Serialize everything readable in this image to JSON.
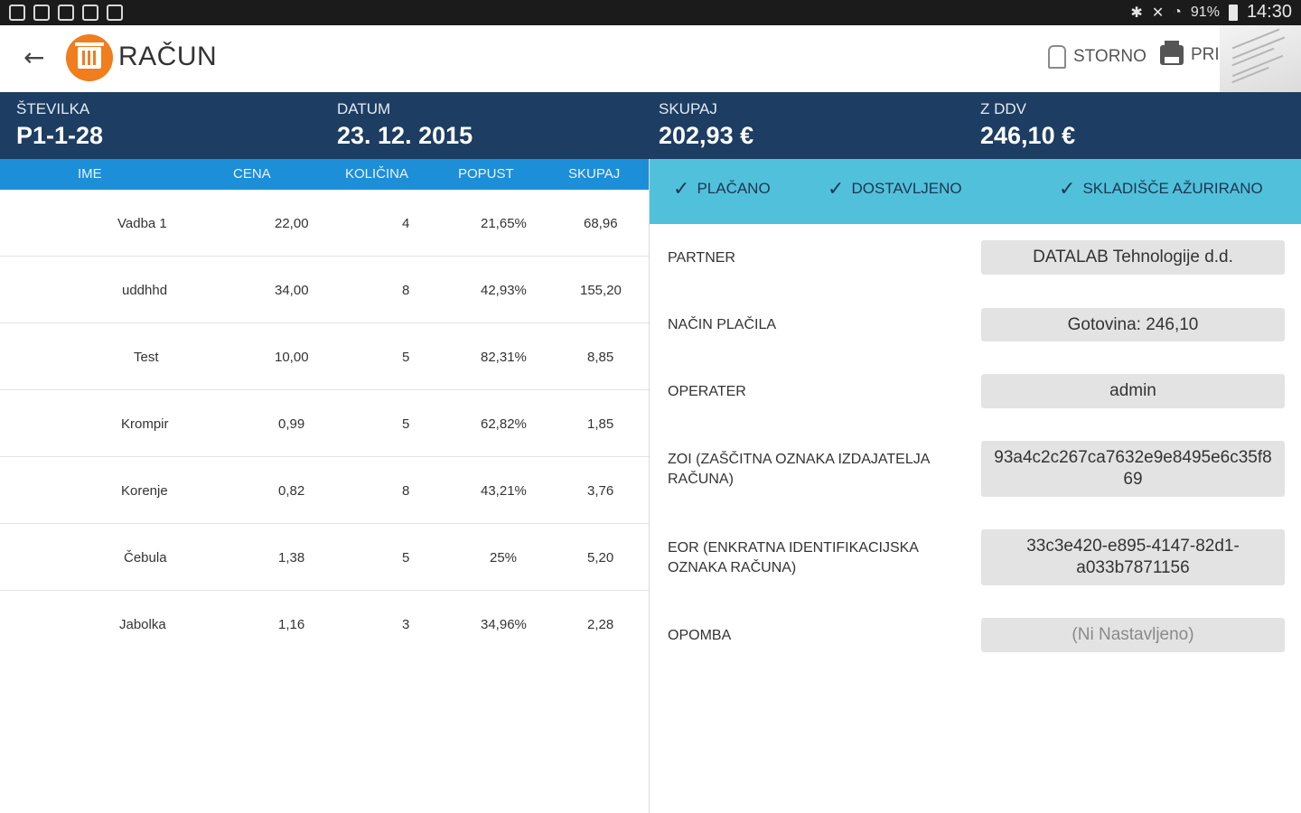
{
  "statusbar": {
    "battery": "91%",
    "time": "14:30"
  },
  "appbar": {
    "title": "RAČUN",
    "storno": "STORNO",
    "print": "PRINT"
  },
  "summary": [
    {
      "label": "ŠTEVILKA",
      "value": "P1-1-28"
    },
    {
      "label": "DATUM",
      "value": "23. 12. 2015"
    },
    {
      "label": "SKUPAJ",
      "value": "202,93 €"
    },
    {
      "label": "Z DDV",
      "value": "246,10 €"
    }
  ],
  "table": {
    "headers": [
      "IME",
      "CENA",
      "KOLIČINA",
      "POPUST",
      "SKUPAJ"
    ],
    "rows": [
      [
        "Vadba 1",
        "22,00",
        "4",
        "21,65%",
        "68,96"
      ],
      [
        "uddhhd",
        "34,00",
        "8",
        "42,93%",
        "155,20"
      ],
      [
        "Test",
        "10,00",
        "5",
        "82,31%",
        "8,85"
      ],
      [
        "Krompir",
        "0,99",
        "5",
        "62,82%",
        "1,85"
      ],
      [
        "Korenje",
        "0,82",
        "8",
        "43,21%",
        "3,76"
      ],
      [
        "Čebula",
        "1,38",
        "5",
        "25%",
        "5,20"
      ],
      [
        "Jabolka",
        "1,16",
        "3",
        "34,96%",
        "2,28"
      ]
    ]
  },
  "flags": [
    "PLAČANO",
    "DOSTAVLJENO",
    "SKLADIŠČE AŽURIRANO"
  ],
  "details": [
    {
      "label": "PARTNER",
      "value": "DATALAB Tehnologije d.d."
    },
    {
      "label": "NAČIN PLAČILA",
      "value": "Gotovina: 246,10"
    },
    {
      "label": "OPERATER",
      "value": "admin"
    },
    {
      "label": "ZOI (ZAŠČITNA OZNAKA IZDAJATELJA RAČUNA)",
      "value": "93a4c2c267ca7632e9e8495e6c35f8 69"
    },
    {
      "label": "EOR (ENKRATNA IDENTIFIKACIJSKA OZNAKA RAČUNA)",
      "value": "33c3e420-e895-4147-82d1- a033b7871156"
    },
    {
      "label": "OPOMBA",
      "value": "(Ni Nastavljeno)"
    }
  ],
  "colors": {
    "summary_bg": "#1d3d62",
    "table_header_bg": "#1d8ed8",
    "flags_bg": "#51c1db",
    "logo": "#f07d1e"
  }
}
